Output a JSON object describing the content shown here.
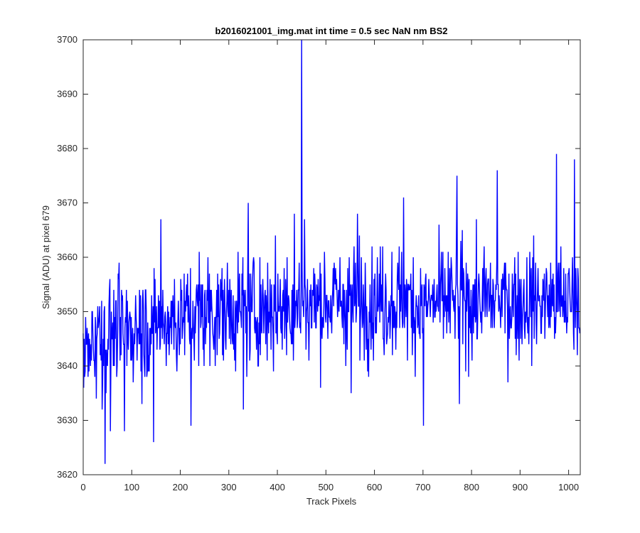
{
  "chart_data": {
    "type": "line",
    "title": "b2016021001_img.mat int time = 0.5 sec  NaN nm BS2",
    "xlabel": "Track Pixels",
    "ylabel": "Signal (ADU) at pixel 679",
    "xlim": [
      0,
      1024
    ],
    "ylim": [
      3620,
      3700
    ],
    "x_ticks": [
      0,
      100,
      200,
      300,
      400,
      500,
      600,
      700,
      800,
      900,
      1000
    ],
    "y_ticks": [
      3620,
      3630,
      3640,
      3650,
      3660,
      3670,
      3680,
      3690,
      3700
    ],
    "x_tick_labels": [
      "0",
      "100",
      "200",
      "300",
      "400",
      "500",
      "600",
      "700",
      "800",
      "900",
      "1000"
    ],
    "y_tick_labels": [
      "3620",
      "3630",
      "3640",
      "3650",
      "3660",
      "3670",
      "3680",
      "3690",
      "3700"
    ],
    "grid": false,
    "line_color": "#0000ff",
    "axis_color": "#262626",
    "series": [
      {
        "noise_base": [
          [
            0,
            3644
          ],
          [
            50,
            3646
          ],
          [
            100,
            3647
          ],
          [
            150,
            3648
          ],
          [
            200,
            3649
          ],
          [
            250,
            3650
          ],
          [
            300,
            3650
          ],
          [
            350,
            3650
          ],
          [
            400,
            3651
          ],
          [
            450,
            3651
          ],
          [
            500,
            3652
          ],
          [
            550,
            3652
          ],
          [
            600,
            3652
          ],
          [
            650,
            3652
          ],
          [
            700,
            3651
          ],
          [
            750,
            3652
          ],
          [
            800,
            3652
          ],
          [
            850,
            3652
          ],
          [
            900,
            3652
          ],
          [
            950,
            3652
          ],
          [
            1000,
            3652
          ],
          [
            1023,
            3652
          ]
        ],
        "noise_amplitude": 6,
        "points_count": 1024,
        "extremes": [
          [
            45,
            3622
          ],
          [
            56,
            3628
          ],
          [
            85,
            3628
          ],
          [
            145,
            3626
          ],
          [
            222,
            3629
          ],
          [
            450,
            3700
          ],
          [
            452,
            3651
          ],
          [
            456,
            3667
          ],
          [
            701,
            3629
          ],
          [
            853,
            3676
          ],
          [
            975,
            3679
          ],
          [
            1012,
            3678
          ],
          [
            30,
            3651
          ],
          [
            160,
            3667
          ],
          [
            330,
            3632
          ],
          [
            340,
            3670
          ],
          [
            435,
            3668
          ],
          [
            552,
            3635
          ],
          [
            565,
            3668
          ],
          [
            660,
            3671
          ],
          [
            770,
            3675
          ],
          [
            775,
            3633
          ]
        ]
      }
    ]
  }
}
